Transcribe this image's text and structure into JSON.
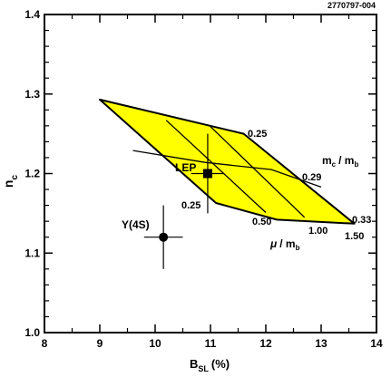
{
  "figure_id": "2770797-004",
  "chart_data": {
    "type": "scatter",
    "xlabel": "B",
    "xlabel_sub": "SL",
    "xlabel_unit": "(%)",
    "ylabel": "n",
    "ylabel_sub": "c",
    "xlim": [
      8,
      14
    ],
    "ylim": [
      1.0,
      1.4
    ],
    "x_ticks": [
      8,
      9,
      10,
      11,
      12,
      13,
      14
    ],
    "y_ticks": [
      1.0,
      1.1,
      1.2,
      1.3,
      1.4
    ],
    "x_tick_labels": [
      "8",
      "9",
      "10",
      "11",
      "12",
      "13",
      "14"
    ],
    "y_tick_labels": [
      "1.0",
      "1.1",
      "1.2",
      "1.3",
      "1.4"
    ],
    "grid": false,
    "theory_band": {
      "fill": "#ffff00",
      "outline": [
        [
          9.0,
          1.293
        ],
        [
          11.6,
          1.25
        ],
        [
          13.6,
          1.137
        ],
        [
          12.2,
          1.142
        ],
        [
          11.1,
          1.163
        ]
      ],
      "mu_lines": [
        {
          "label": "0.25",
          "pts": [
            [
              9.0,
              1.293
            ],
            [
              11.1,
              1.163
            ]
          ]
        },
        {
          "label": "0.50",
          "pts": [
            [
              10.2,
              1.267
            ],
            [
              12.0,
              1.151
            ]
          ]
        },
        {
          "label": "1.00",
          "pts": [
            [
              11.0,
              1.259
            ],
            [
              12.7,
              1.145
            ]
          ]
        },
        {
          "label": "1.50",
          "pts": [
            [
              11.6,
              1.25
            ],
            [
              13.6,
              1.137
            ]
          ]
        }
      ],
      "mc_lines": [
        {
          "label": "0.25",
          "pts": [
            [
              9.0,
              1.293
            ],
            [
              11.6,
              1.25
            ]
          ]
        },
        {
          "label": "0.29",
          "pts": [
            [
              9.6,
              1.229
            ],
            [
              10.9,
              1.214
            ],
            [
              12.1,
              1.205
            ],
            [
              13.0,
              1.183
            ]
          ]
        },
        {
          "label": "0.33",
          "pts": [
            [
              11.1,
              1.163
            ],
            [
              12.2,
              1.142
            ],
            [
              13.6,
              1.137
            ]
          ]
        }
      ]
    },
    "points": [
      {
        "label": "LEP",
        "marker": "square",
        "x": 10.95,
        "y": 1.2,
        "x_err": 0.3,
        "y_err": 0.05
      },
      {
        "label": "Υ(4S)",
        "marker": "circle",
        "x": 10.15,
        "y": 1.12,
        "x_err": 0.35,
        "y_err": 0.04
      }
    ],
    "annotations": {
      "lep": "LEP",
      "upsilon": "Υ(4S)",
      "mc_top": "0.25",
      "mc_mid": "0.29",
      "mc_bottom": "0.33",
      "mu_025": "0.25",
      "mu_050": "0.50",
      "mu_100": "1.00",
      "mu_150": "1.50",
      "mc_ratio_num": "m",
      "mc_ratio_sub": "c",
      "mc_ratio_den": "/ m",
      "mc_ratio_den_sub": "b",
      "mu_ratio_num": "μ",
      "mu_ratio_den": "/ m",
      "mu_ratio_den_sub": "b"
    }
  }
}
